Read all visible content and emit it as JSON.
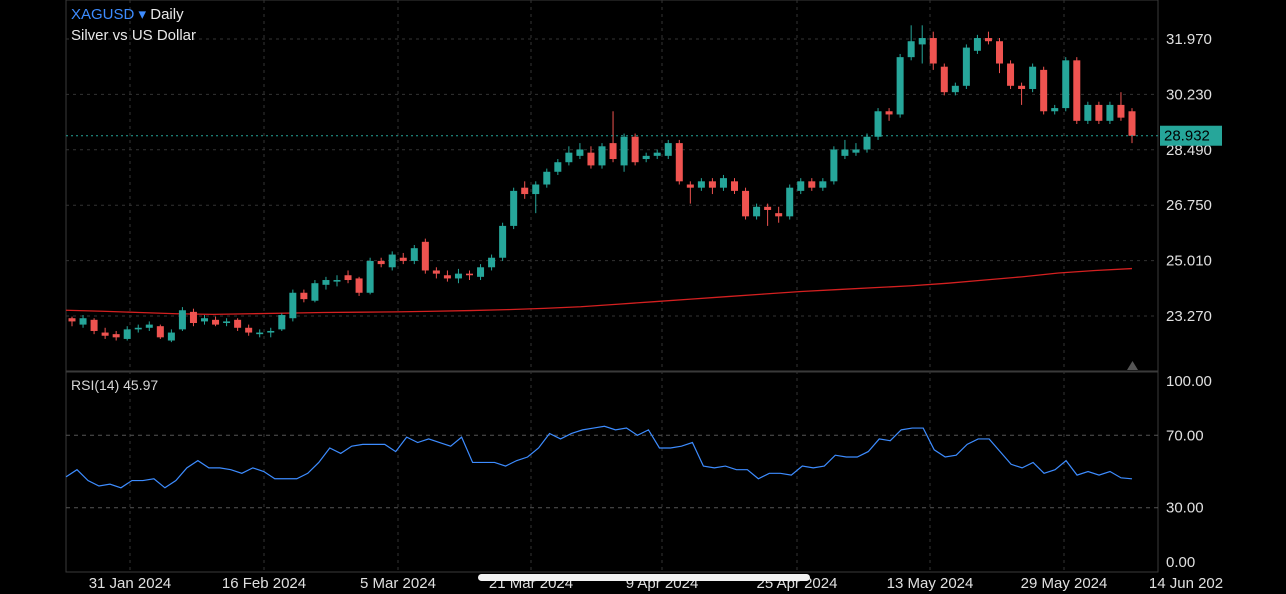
{
  "header": {
    "symbol": "XAGUSD",
    "dropdown_glyph": "▾",
    "timeframe": "Daily",
    "description": "Silver vs US Dollar"
  },
  "price_label": "28.932",
  "rsi_label": "RSI(14)",
  "rsi_value": "45.97",
  "colors": {
    "up": "#26a69a",
    "down": "#ef5350",
    "ma": "#d42020",
    "rsi": "#3d8cff",
    "price_line": "#26a69a",
    "grid": "#333333",
    "axis_text": "#e0e0e0"
  },
  "chart_data": [
    {
      "type": "candlestick",
      "price_ticks": [
        "31.970",
        "30.230",
        "28.490",
        "26.750",
        "25.010",
        "23.270"
      ],
      "ylim": [
        22.0,
        32.5
      ],
      "x_ticks": [
        "31 Jan 2024",
        "16 Feb 2024",
        "5 Mar 2024",
        "21 Mar 2024",
        "9 Apr 2024",
        "25 Apr 2024",
        "13 May 2024",
        "29 May 2024",
        "14 Jun 202"
      ],
      "last_price": 28.932,
      "candles": [
        [
          23.2,
          23.1,
          23.25,
          22.95
        ],
        [
          23.0,
          23.2,
          23.3,
          22.9
        ],
        [
          23.15,
          22.8,
          23.2,
          22.7
        ],
        [
          22.75,
          22.65,
          22.9,
          22.55
        ],
        [
          22.7,
          22.6,
          22.8,
          22.5
        ],
        [
          22.55,
          22.85,
          22.95,
          22.5
        ],
        [
          22.85,
          22.9,
          23.0,
          22.75
        ],
        [
          22.9,
          23.0,
          23.1,
          22.8
        ],
        [
          22.95,
          22.6,
          23.0,
          22.55
        ],
        [
          22.5,
          22.75,
          22.85,
          22.45
        ],
        [
          22.85,
          23.45,
          23.55,
          22.8
        ],
        [
          23.4,
          23.05,
          23.5,
          22.95
        ],
        [
          23.1,
          23.2,
          23.3,
          23.0
        ],
        [
          23.15,
          23.0,
          23.25,
          22.95
        ],
        [
          23.05,
          23.1,
          23.2,
          22.95
        ],
        [
          23.15,
          22.9,
          23.2,
          22.8
        ],
        [
          22.9,
          22.75,
          23.0,
          22.65
        ],
        [
          22.7,
          22.75,
          22.85,
          22.6
        ],
        [
          22.75,
          22.8,
          22.9,
          22.6
        ],
        [
          22.85,
          23.3,
          23.35,
          22.8
        ],
        [
          23.2,
          24.0,
          24.1,
          23.1
        ],
        [
          24.0,
          23.8,
          24.1,
          23.7
        ],
        [
          23.75,
          24.3,
          24.4,
          23.7
        ],
        [
          24.25,
          24.4,
          24.5,
          24.1
        ],
        [
          24.35,
          24.4,
          24.55,
          24.2
        ],
        [
          24.55,
          24.4,
          24.7,
          24.3
        ],
        [
          24.45,
          24.0,
          24.5,
          23.9
        ],
        [
          24.0,
          25.0,
          25.1,
          23.95
        ],
        [
          25.0,
          24.9,
          25.1,
          24.8
        ],
        [
          24.8,
          25.2,
          25.3,
          24.7
        ],
        [
          25.1,
          25.0,
          25.25,
          24.9
        ],
        [
          25.0,
          25.4,
          25.5,
          24.9
        ],
        [
          25.6,
          24.7,
          25.7,
          24.6
        ],
        [
          24.7,
          24.6,
          24.8,
          24.45
        ],
        [
          24.55,
          24.45,
          24.7,
          24.35
        ],
        [
          24.45,
          24.6,
          24.75,
          24.3
        ],
        [
          24.6,
          24.55,
          24.7,
          24.4
        ],
        [
          24.5,
          24.8,
          24.9,
          24.4
        ],
        [
          24.8,
          25.1,
          25.2,
          24.7
        ],
        [
          25.1,
          26.1,
          26.2,
          25.0
        ],
        [
          26.1,
          27.2,
          27.3,
          26.0
        ],
        [
          27.3,
          27.1,
          27.5,
          26.95
        ],
        [
          27.1,
          27.4,
          27.5,
          26.5
        ],
        [
          27.4,
          27.8,
          27.9,
          27.3
        ],
        [
          27.8,
          28.1,
          28.2,
          27.7
        ],
        [
          28.1,
          28.4,
          28.6,
          28.0
        ],
        [
          28.3,
          28.5,
          28.7,
          28.2
        ],
        [
          28.4,
          28.0,
          28.6,
          27.9
        ],
        [
          28.0,
          28.6,
          28.7,
          27.9
        ],
        [
          28.7,
          28.2,
          29.7,
          28.1
        ],
        [
          28.0,
          28.9,
          29.0,
          27.8
        ],
        [
          28.9,
          28.1,
          29.0,
          28.0
        ],
        [
          28.2,
          28.3,
          28.4,
          28.1
        ],
        [
          28.3,
          28.4,
          28.5,
          28.2
        ],
        [
          28.3,
          28.7,
          28.8,
          28.2
        ],
        [
          28.7,
          27.5,
          28.8,
          27.4
        ],
        [
          27.4,
          27.3,
          27.5,
          26.8
        ],
        [
          27.3,
          27.5,
          27.6,
          27.2
        ],
        [
          27.5,
          27.3,
          27.6,
          27.1
        ],
        [
          27.3,
          27.6,
          27.7,
          27.2
        ],
        [
          27.5,
          27.2,
          27.6,
          27.1
        ],
        [
          27.2,
          26.4,
          27.3,
          26.3
        ],
        [
          26.4,
          26.7,
          26.8,
          26.3
        ],
        [
          26.7,
          26.6,
          26.8,
          26.1
        ],
        [
          26.5,
          26.4,
          26.7,
          26.2
        ],
        [
          26.4,
          27.3,
          27.4,
          26.3
        ],
        [
          27.2,
          27.5,
          27.6,
          27.1
        ],
        [
          27.5,
          27.3,
          27.6,
          27.2
        ],
        [
          27.3,
          27.5,
          27.6,
          27.2
        ],
        [
          27.5,
          28.5,
          28.6,
          27.4
        ],
        [
          28.3,
          28.5,
          28.8,
          28.2
        ],
        [
          28.4,
          28.5,
          28.7,
          28.3
        ],
        [
          28.5,
          28.9,
          29.0,
          28.4
        ],
        [
          28.9,
          29.7,
          29.8,
          28.8
        ],
        [
          29.7,
          29.6,
          29.8,
          29.4
        ],
        [
          29.6,
          31.4,
          31.5,
          29.5
        ],
        [
          31.4,
          31.9,
          32.4,
          31.3
        ],
        [
          31.8,
          32.0,
          32.4,
          31.2
        ],
        [
          32.0,
          31.2,
          32.2,
          31.0
        ],
        [
          31.1,
          30.3,
          31.2,
          30.2
        ],
        [
          30.3,
          30.5,
          30.6,
          30.2
        ],
        [
          30.5,
          31.7,
          31.8,
          30.4
        ],
        [
          31.6,
          32.0,
          32.1,
          31.5
        ],
        [
          32.0,
          31.9,
          32.2,
          31.8
        ],
        [
          31.9,
          31.2,
          32.0,
          30.9
        ],
        [
          31.2,
          30.5,
          31.3,
          30.4
        ],
        [
          30.5,
          30.4,
          30.6,
          29.9
        ],
        [
          30.4,
          31.1,
          31.2,
          30.3
        ],
        [
          31.0,
          29.7,
          31.1,
          29.6
        ],
        [
          29.7,
          29.8,
          29.9,
          29.6
        ],
        [
          29.8,
          31.3,
          31.4,
          29.7
        ],
        [
          31.3,
          29.4,
          31.4,
          29.3
        ],
        [
          29.4,
          29.9,
          30.0,
          29.3
        ],
        [
          29.9,
          29.4,
          30.0,
          29.3
        ],
        [
          29.4,
          29.9,
          30.0,
          29.3
        ],
        [
          29.9,
          29.5,
          30.3,
          29.4
        ],
        [
          29.7,
          28.93,
          29.8,
          28.7
        ]
      ],
      "ma": [
        23.45,
        23.42,
        23.38,
        23.34,
        23.32,
        23.34,
        23.36,
        23.38,
        23.39,
        23.4,
        23.42,
        23.44,
        23.47,
        23.51,
        23.56,
        23.64,
        23.72,
        23.8,
        23.88,
        23.96,
        24.04,
        24.1,
        24.16,
        24.22,
        24.3,
        24.4,
        24.5,
        24.62,
        24.7,
        24.76
      ]
    },
    {
      "type": "line",
      "name": "RSI(14)",
      "y_ticks": [
        "100.00",
        "70.00",
        "30.00",
        "0.00"
      ],
      "ylim": [
        0,
        100
      ],
      "levels": [
        70,
        30
      ],
      "values": [
        47,
        51,
        45,
        42,
        43,
        41,
        45,
        45,
        46,
        41,
        45,
        52,
        56,
        52,
        52,
        51,
        49,
        52,
        50,
        46,
        46,
        46,
        49,
        55,
        63,
        60,
        64,
        65,
        65,
        65,
        61,
        69,
        66,
        68,
        66,
        64,
        69,
        55,
        55,
        55,
        53,
        56,
        58,
        63,
        71,
        68,
        71,
        73,
        74,
        75,
        73,
        74,
        70,
        73,
        63,
        63,
        64,
        66,
        53,
        52,
        53,
        51,
        51,
        46,
        49,
        49,
        48,
        53,
        52,
        53,
        59,
        58,
        58,
        61,
        68,
        67,
        73,
        74,
        74,
        62,
        58,
        59,
        65,
        68,
        68,
        61,
        54,
        52,
        55,
        49,
        51,
        56,
        48,
        50,
        48,
        50,
        46.5,
        45.97
      ]
    }
  ]
}
